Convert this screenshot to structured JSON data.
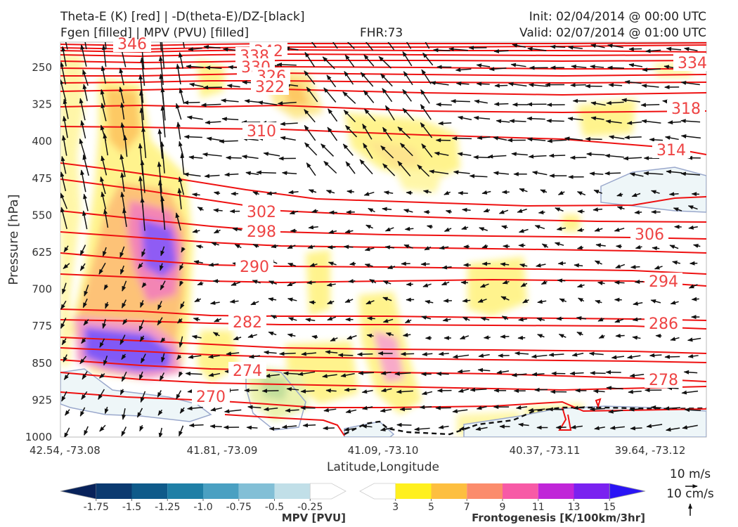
{
  "header": {
    "line1_left": "Theta-E (K) [red] | -D(theta-E)/DZ-[black]",
    "line2_left": "Fgen [filled] | MPV (PVU) [filled]",
    "fhr": "FHR:73",
    "init": "Init: 02/04/2014 @ 00:00 UTC",
    "valid": "Valid: 02/07/2014 @ 01:00 UTC"
  },
  "chart_data": {
    "type": "cross-section",
    "ylabel": "Pressure [hPa]",
    "xlabel": "Latitude,Longitude",
    "y_ticks": [
      250,
      325,
      400,
      475,
      550,
      625,
      700,
      775,
      850,
      925,
      1000
    ],
    "ylim": [
      1000,
      190
    ],
    "x_ticks": [
      "42.54, -73.08",
      "41.81, -73.09",
      "41.09, -73.10",
      "40.37, -73.11",
      "39.64, -73.12"
    ],
    "theta_e_labels_left": [
      "346",
      "342",
      "338",
      "330",
      "326",
      "322",
      "310",
      "302",
      "298",
      "290",
      "282",
      "274",
      "270"
    ],
    "theta_e_labels_right": [
      "334",
      "318",
      "314",
      "306",
      "294",
      "286",
      "278"
    ],
    "wind_reference": {
      "label1": "10 m/s",
      "label2": "10 cm/s"
    },
    "mpv_colorbar": {
      "title": "MPV [PVU]",
      "ticks": [
        "-1.75",
        "-1.5",
        "-1.25",
        "-1.0",
        "-0.75",
        "-0.5",
        "-0.25"
      ],
      "colors": [
        "#08225a",
        "#0b3a70",
        "#0f5a8a",
        "#1f7fa6",
        "#4aa0c2",
        "#82bfd6",
        "#c1dfe8",
        "#ffffff"
      ]
    },
    "fgen_colorbar": {
      "title": "Frontogenesis [K/100km/3hr]",
      "ticks": [
        "3",
        "5",
        "7",
        "9",
        "11",
        "13",
        "15"
      ],
      "colors": [
        "#ffffff",
        "#fff01e",
        "#fdbf40",
        "#fb8c6c",
        "#f75aa6",
        "#c026d8",
        "#7a22f0",
        "#2a14f5"
      ]
    }
  }
}
